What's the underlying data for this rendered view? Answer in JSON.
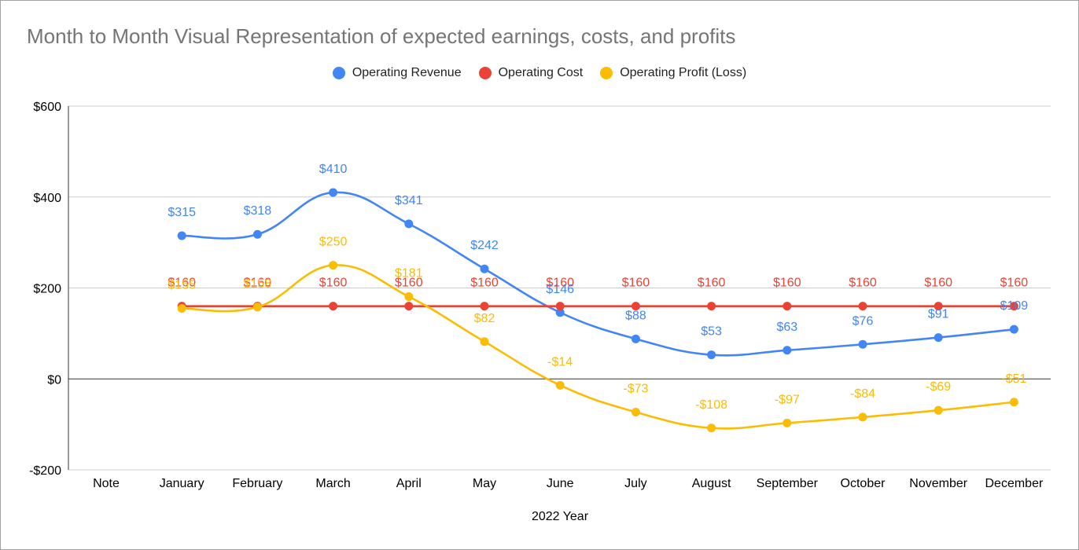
{
  "chart_data": {
    "type": "line",
    "title": "Month to Month Visual Representation of expected earnings, costs, and profits",
    "xlabel": "2022 Year",
    "ylabel": "",
    "ylim": [
      -200,
      600
    ],
    "yticks": [
      -200,
      0,
      200,
      400,
      600
    ],
    "ytick_labels": [
      "-$200",
      "$0",
      "$200",
      "$400",
      "$600"
    ],
    "categories": [
      "Note",
      "January",
      "February",
      "March",
      "April",
      "May",
      "June",
      "July",
      "August",
      "September",
      "October",
      "November",
      "December"
    ],
    "legend_position": "top",
    "grid": true,
    "smooth": true,
    "series": [
      {
        "name": "Operating Revenue",
        "color": "#4285f4",
        "values": [
          null,
          315,
          318,
          410,
          341,
          242,
          146,
          88,
          53,
          63,
          76,
          91,
          109
        ],
        "labels": [
          null,
          "$315",
          "$318",
          "$410",
          "$341",
          "$242",
          "$146",
          "$88",
          "$53",
          "$63",
          "$76",
          "$91",
          "$109"
        ]
      },
      {
        "name": "Operating Cost",
        "color": "#ea4335",
        "values": [
          null,
          160,
          160,
          160,
          160,
          160,
          160,
          160,
          160,
          160,
          160,
          160,
          160
        ],
        "labels": [
          null,
          "$160",
          "$160",
          "$160",
          "$160",
          "$160",
          "$160",
          "$160",
          "$160",
          "$160",
          "$160",
          "$160",
          "$160"
        ]
      },
      {
        "name": "Operating Profit (Loss)",
        "color": "#fbbc04",
        "values": [
          null,
          155,
          158,
          250,
          181,
          82,
          -14,
          -73,
          -108,
          -97,
          -84,
          -69,
          -51
        ],
        "labels": [
          null,
          "$155",
          "$158",
          "$250",
          "$181",
          "$82",
          "-$14",
          "-$73",
          "-$108",
          "-$97",
          "-$84",
          "-$69",
          "-$51"
        ]
      }
    ]
  }
}
